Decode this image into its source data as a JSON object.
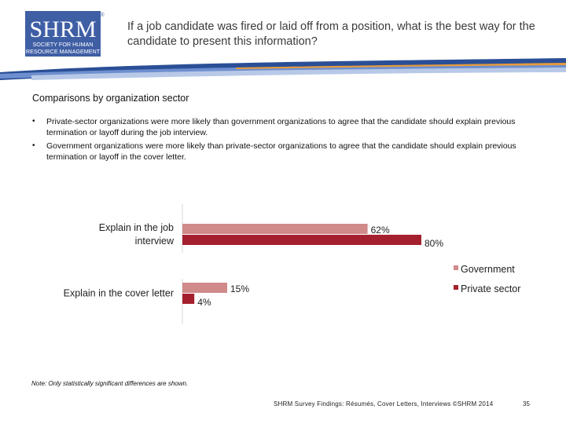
{
  "logo": {
    "text_main": "SHRM",
    "text_sub1": "SOCIETY FOR HUMAN",
    "text_sub2": "RESOURCE MANAGEMENT",
    "registered": "®"
  },
  "header": {
    "title": "If a job candidate was fired or laid off from a position, what is the best way for the candidate to present this information?"
  },
  "section_title": "Comparisons by organization sector",
  "bullets": [
    "Private-sector organizations were more likely than government organizations to agree that the candidate should explain previous termination or layoff during the job interview.",
    "Government organizations were more likely than private-sector organizations to agree that the candidate should explain previous termination or layoff in the cover letter."
  ],
  "bullet_symbol": "•",
  "chart_data": {
    "type": "bar",
    "orientation": "horizontal",
    "categories": [
      "Explain in the job interview",
      "Explain in the cover letter"
    ],
    "category_lines": [
      [
        "Explain in the job",
        "interview"
      ],
      [
        "Explain in the cover letter"
      ]
    ],
    "series": [
      {
        "name": "Government",
        "values": [
          62,
          15
        ],
        "labels": [
          "62%",
          "15%"
        ],
        "color": "#d08a8a"
      },
      {
        "name": "Private sector",
        "values": [
          80,
          4
        ],
        "labels": [
          "80%",
          "4%"
        ],
        "color": "#a5202e"
      }
    ],
    "xlim": [
      0,
      100
    ],
    "legend_position": "right"
  },
  "note": "Note: Only statistically significant differences are shown.",
  "footer": {
    "text": "SHRM Survey Findings: Résumés, Cover Letters, Interviews ©SHRM 2014",
    "page": "35"
  },
  "colors": {
    "logo_blue": "#3f5fa5",
    "swoosh_blue": "#2a4f96",
    "swoosh_orange": "#e79b3c"
  }
}
